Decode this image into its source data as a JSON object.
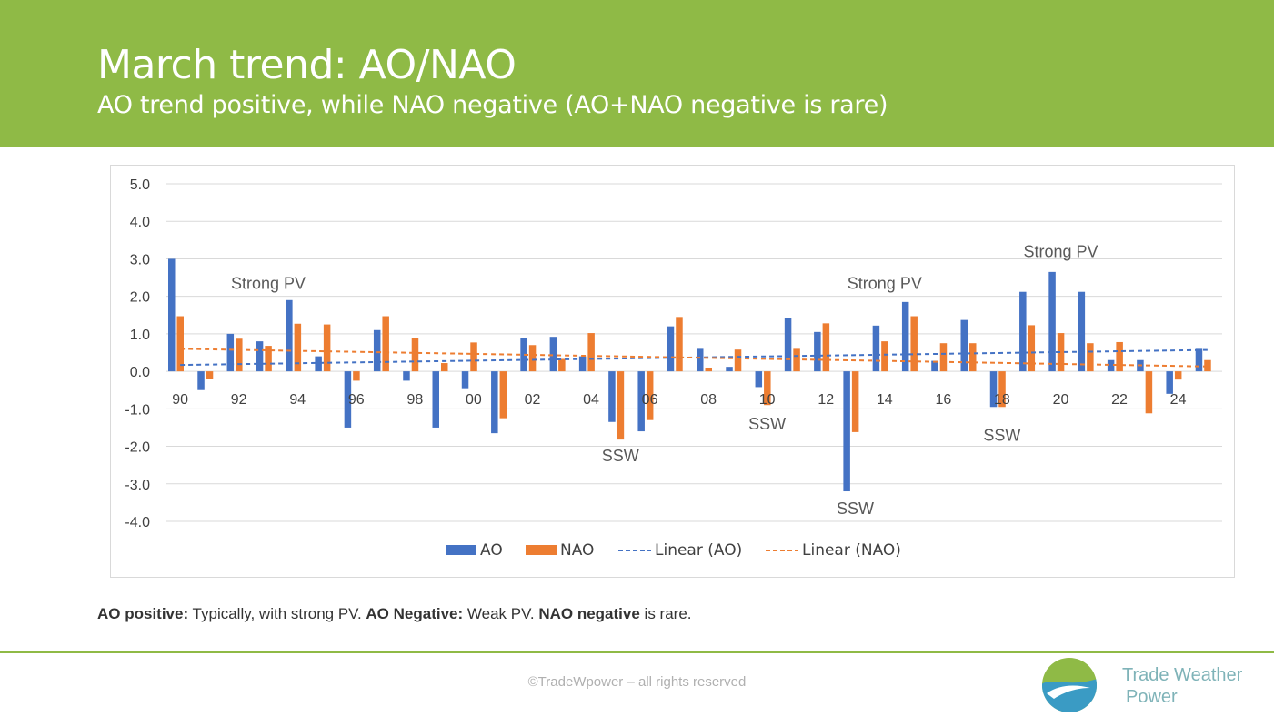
{
  "header": {
    "title": "March trend: AO/NAO",
    "subtitle": "AO trend positive, while NAO negative (AO+NAO negative is rare)"
  },
  "caption": {
    "b1": "AO positive:",
    "t1": " Typically, with strong PV. ",
    "b2": "AO Negative:",
    "t2": " Weak PV. ",
    "b3": "NAO negative",
    "t3": " is rare."
  },
  "footer": {
    "copyright": "©TradeWpower – all rights reserved",
    "logo_line1": "Trade Weather",
    "logo_line2": "Power"
  },
  "colors": {
    "header": "#8fba46",
    "ao": "#4472c4",
    "nao": "#ed7d31"
  },
  "chart_data": {
    "type": "bar",
    "categories": [
      "90",
      "91",
      "92",
      "93",
      "94",
      "95",
      "96",
      "97",
      "98",
      "99",
      "00",
      "01",
      "02",
      "03",
      "04",
      "05",
      "06",
      "07",
      "08",
      "09",
      "10",
      "11",
      "12",
      "13",
      "14",
      "15",
      "16",
      "17",
      "18",
      "19",
      "20",
      "21",
      "22",
      "23",
      "24",
      "25"
    ],
    "x_tick_labels": [
      "90",
      "",
      "92",
      "",
      "94",
      "",
      "96",
      "",
      "98",
      "",
      "00",
      "",
      "02",
      "",
      "04",
      "",
      "06",
      "",
      "08",
      "",
      "10",
      "",
      "12",
      "",
      "14",
      "",
      "16",
      "",
      "18",
      "",
      "20",
      "",
      "22",
      "",
      "24",
      ""
    ],
    "series": [
      {
        "name": "AO",
        "color": "#4472c4",
        "values": [
          3.0,
          -0.5,
          1.0,
          0.8,
          1.9,
          0.4,
          -1.5,
          1.1,
          -0.25,
          -1.5,
          -0.45,
          -1.65,
          0.9,
          0.92,
          0.4,
          -1.35,
          -1.6,
          1.2,
          0.6,
          0.12,
          -0.42,
          1.43,
          1.05,
          -3.2,
          1.22,
          1.85,
          0.28,
          1.37,
          -0.95,
          2.12,
          2.65,
          2.12,
          0.3,
          0.3,
          -0.6,
          0.6
        ]
      },
      {
        "name": "NAO",
        "color": "#ed7d31",
        "values": [
          1.47,
          -0.2,
          0.87,
          0.68,
          1.27,
          1.25,
          -0.25,
          1.47,
          0.88,
          0.22,
          0.77,
          -1.25,
          0.7,
          0.33,
          1.02,
          -1.82,
          -1.3,
          1.45,
          0.1,
          0.58,
          -0.9,
          0.6,
          1.28,
          -1.62,
          0.8,
          1.47,
          0.75,
          0.75,
          -0.95,
          1.23,
          1.02,
          0.75,
          0.78,
          -1.12,
          -0.22,
          0.3
        ]
      }
    ],
    "trendlines": [
      {
        "name": "Linear (AO)",
        "color": "#4472c4",
        "start": 0.17,
        "end": 0.57
      },
      {
        "name": "Linear (NAO)",
        "color": "#ed7d31",
        "start": 0.6,
        "end": 0.13
      }
    ],
    "annotations": [
      {
        "text": "Strong PV",
        "x": "93",
        "y": 2.2
      },
      {
        "text": "SSW",
        "x": "05",
        "y": -2.4
      },
      {
        "text": "SSW",
        "x": "10",
        "y": -1.55
      },
      {
        "text": "SSW",
        "x": "13",
        "y": -3.8
      },
      {
        "text": "Strong PV",
        "x": "14",
        "y": 2.2
      },
      {
        "text": "SSW",
        "x": "18",
        "y": -1.85
      },
      {
        "text": "Strong PV",
        "x": "20",
        "y": 3.05
      }
    ],
    "y_ticks": [
      "5.0",
      "4.0",
      "3.0",
      "2.0",
      "1.0",
      "0.0",
      "-1.0",
      "-2.0",
      "-3.0",
      "-4.0"
    ],
    "ylim": [
      -4,
      5
    ],
    "grid": true,
    "legend": "bottom",
    "legend_labels": [
      "AO",
      "NAO",
      "Linear (AO)",
      "Linear (NAO)"
    ],
    "title": "",
    "xlabel": "",
    "ylabel": ""
  }
}
